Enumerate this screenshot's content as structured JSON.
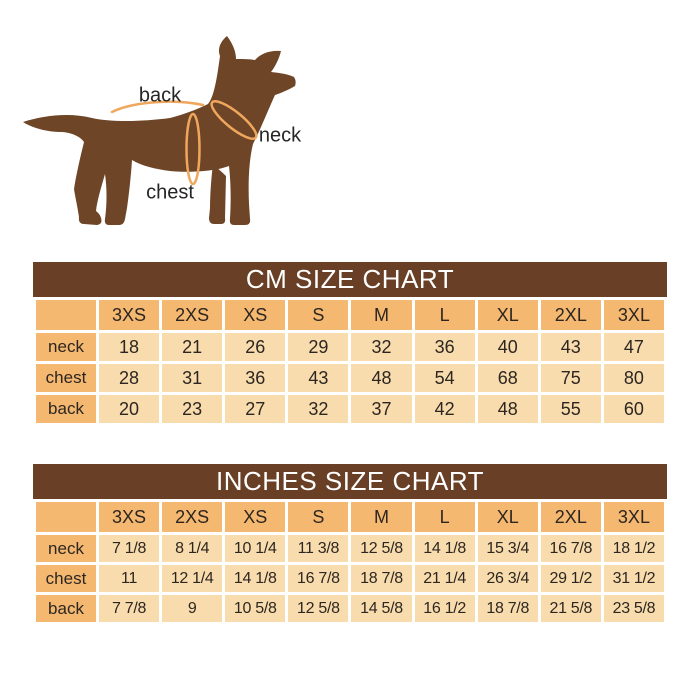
{
  "page": {
    "background": "#ffffff"
  },
  "diagram": {
    "labels": {
      "back": "back",
      "neck": "neck",
      "chest": "chest"
    },
    "colors": {
      "dog_body": "#6e4627",
      "measure_mark": "#efa75d",
      "label_text": "#262626"
    }
  },
  "table_style": {
    "title_bar_bg": "#694026",
    "title_text": "#ffffff",
    "accent_cell_bg": "#f4b871",
    "value_cell_bg": "#f8dcae",
    "cell_text": "#2d2620",
    "grid_color": "#ffffff"
  },
  "chart_data": [
    {
      "type": "table",
      "title": "CM SIZE CHART",
      "unit": "cm",
      "columns": [
        "3XS",
        "2XS",
        "XS",
        "S",
        "M",
        "L",
        "XL",
        "2XL",
        "3XL"
      ],
      "rows": [
        {
          "label": "neck",
          "values": [
            "18",
            "21",
            "26",
            "29",
            "32",
            "36",
            "40",
            "43",
            "47"
          ]
        },
        {
          "label": "chest",
          "values": [
            "28",
            "31",
            "36",
            "43",
            "48",
            "54",
            "68",
            "75",
            "80"
          ]
        },
        {
          "label": "back",
          "values": [
            "20",
            "23",
            "27",
            "32",
            "37",
            "42",
            "48",
            "55",
            "60"
          ]
        }
      ]
    },
    {
      "type": "table",
      "title": "INCHES SIZE CHART",
      "unit": "inches",
      "columns": [
        "3XS",
        "2XS",
        "XS",
        "S",
        "M",
        "L",
        "XL",
        "2XL",
        "3XL"
      ],
      "rows": [
        {
          "label": "neck",
          "values": [
            "7 1/8",
            "8 1/4",
            "10 1/4",
            "11 3/8",
            "12 5/8",
            "14 1/8",
            "15 3/4",
            "16 7/8",
            "18 1/2"
          ]
        },
        {
          "label": "chest",
          "values": [
            "11",
            "12 1/4",
            "14 1/8",
            "16 7/8",
            "18 7/8",
            "21 1/4",
            "26 3/4",
            "29 1/2",
            "31 1/2"
          ]
        },
        {
          "label": "back",
          "values": [
            "7 7/8",
            "9",
            "10 5/8",
            "12 5/8",
            "14 5/8",
            "16 1/2",
            "18 7/8",
            "21 5/8",
            "23 5/8"
          ]
        }
      ]
    }
  ]
}
